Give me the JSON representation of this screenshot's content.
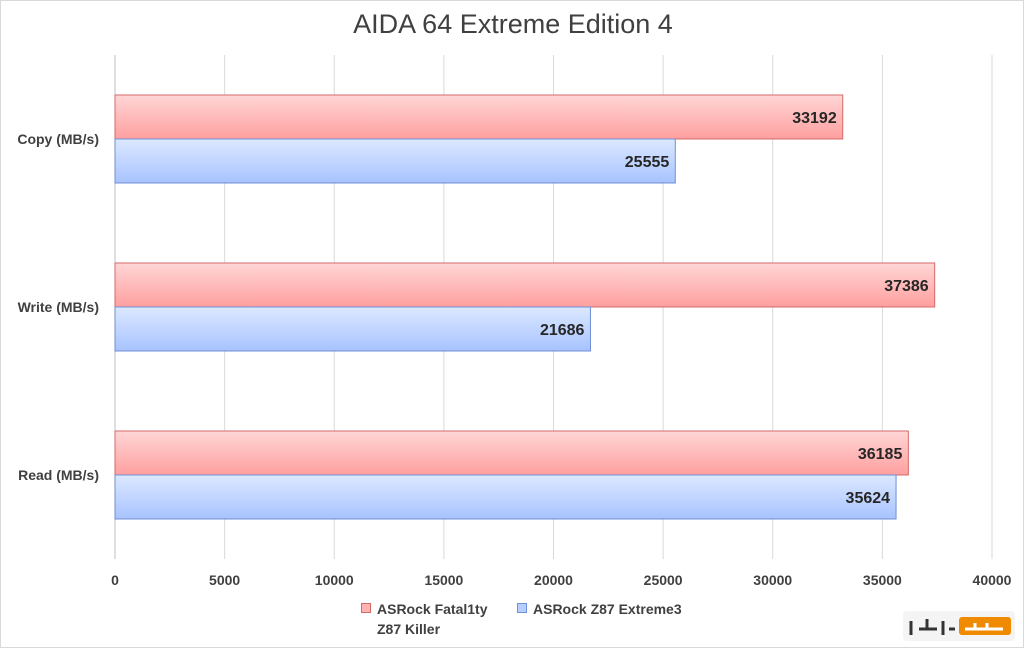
{
  "chart_data": {
    "type": "bar",
    "orientation": "horizontal",
    "title": "AIDA 64 Extreme Edition 4",
    "categories": [
      "Copy (MB/s)",
      "Write (MB/s)",
      "Read (MB/s)"
    ],
    "series": [
      {
        "name": "ASRock Fatal1ty Z87 Killer",
        "values": [
          33192,
          37386,
          36185
        ],
        "color": "#ffb3b3"
      },
      {
        "name": "ASRock Z87 Extreme3",
        "values": [
          25555,
          21686,
          35624
        ],
        "color": "#b7cfff"
      }
    ],
    "xlim": [
      0,
      40000
    ],
    "xticks": [
      0,
      5000,
      10000,
      15000,
      20000,
      25000,
      30000,
      35000,
      40000
    ],
    "grid": "vertical",
    "legend_position": "bottom",
    "data_labels": true
  },
  "watermark": {
    "text": "سخت افزار"
  }
}
